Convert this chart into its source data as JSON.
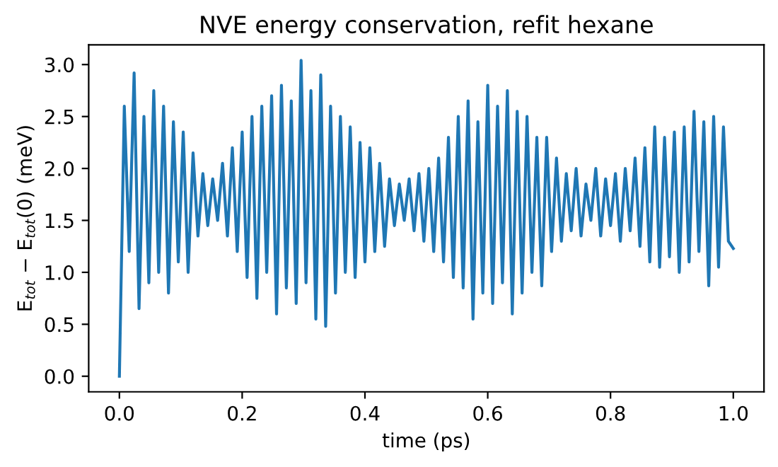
{
  "chart_data": {
    "type": "line",
    "title": "NVE energy conservation, refit hexane",
    "xlabel": "time (ps)",
    "ylabel": "E$_{tot}$ − E$_{tot}$(0) (meV)",
    "xlim": [
      -0.05,
      1.05
    ],
    "ylim": [
      -0.15,
      3.19
    ],
    "xticks": [
      {
        "value": 0,
        "label": "0.0"
      },
      0.2,
      0.4,
      0.6,
      0.8,
      {
        "value": 1,
        "label": "1.0"
      }
    ],
    "yticks": [
      {
        "value": 0,
        "label": "0.0"
      },
      0.5,
      {
        "value": 1,
        "label": "1.0"
      },
      1.5,
      {
        "value": 2,
        "label": "2.0"
      },
      2.5,
      {
        "value": 3,
        "label": "3.0"
      }
    ],
    "grid": false,
    "legend": false,
    "series": [
      {
        "color": "#1f77b4",
        "x": [
          0,
          0.008,
          0.016,
          0.024,
          0.032,
          0.04,
          0.048,
          0.056,
          0.064,
          0.072,
          0.08,
          0.088,
          0.096,
          0.104,
          0.112,
          0.12,
          0.128,
          0.136,
          0.144,
          0.152,
          0.16,
          0.168,
          0.176,
          0.184,
          0.192,
          0.2,
          0.208,
          0.216,
          0.224,
          0.232,
          0.24,
          0.248,
          0.256,
          0.264,
          0.272,
          0.28,
          0.288,
          0.296,
          0.304,
          0.312,
          0.32,
          0.328,
          0.336,
          0.344,
          0.352,
          0.36,
          0.368,
          0.376,
          0.384,
          0.392,
          0.4,
          0.408,
          0.416,
          0.424,
          0.432,
          0.44,
          0.448,
          0.456,
          0.464,
          0.472,
          0.48,
          0.488,
          0.496,
          0.504,
          0.512,
          0.52,
          0.528,
          0.536,
          0.544,
          0.552,
          0.56,
          0.568,
          0.576,
          0.584,
          0.592,
          0.6,
          0.608,
          0.616,
          0.624,
          0.632,
          0.64,
          0.648,
          0.656,
          0.664,
          0.672,
          0.68,
          0.688,
          0.696,
          0.704,
          0.712,
          0.72,
          0.728,
          0.736,
          0.744,
          0.752,
          0.76,
          0.768,
          0.776,
          0.784,
          0.792,
          0.8,
          0.808,
          0.816,
          0.824,
          0.832,
          0.84,
          0.848,
          0.856,
          0.864,
          0.872,
          0.88,
          0.888,
          0.896,
          0.904,
          0.912,
          0.92,
          0.928,
          0.936,
          0.944,
          0.952,
          0.96,
          0.968,
          0.976,
          0.984,
          0.992,
          1.0
        ],
        "values": [
          0.0,
          2.6,
          1.2,
          2.92,
          0.65,
          2.5,
          0.9,
          2.75,
          1.0,
          2.6,
          0.8,
          2.45,
          1.1,
          2.35,
          1.0,
          2.15,
          1.35,
          1.95,
          1.45,
          1.9,
          1.5,
          2.05,
          1.35,
          2.2,
          1.2,
          2.35,
          0.95,
          2.5,
          0.75,
          2.6,
          1.0,
          2.7,
          0.6,
          2.8,
          0.85,
          2.65,
          0.7,
          3.04,
          0.9,
          2.75,
          0.55,
          2.9,
          0.48,
          2.6,
          0.8,
          2.5,
          1.0,
          2.4,
          0.95,
          2.25,
          1.1,
          2.2,
          1.2,
          2.05,
          1.25,
          1.9,
          1.45,
          1.85,
          1.5,
          1.9,
          1.4,
          1.95,
          1.3,
          2.0,
          1.2,
          2.1,
          1.1,
          2.3,
          0.95,
          2.5,
          0.85,
          2.65,
          0.55,
          2.45,
          0.8,
          2.8,
          0.7,
          2.6,
          0.9,
          2.75,
          0.6,
          2.55,
          0.8,
          2.5,
          1.0,
          2.3,
          0.87,
          2.3,
          1.2,
          2.1,
          1.3,
          1.95,
          1.4,
          2.0,
          1.35,
          1.85,
          1.5,
          2.0,
          1.35,
          1.9,
          1.45,
          1.95,
          1.3,
          2.0,
          1.4,
          2.1,
          1.25,
          2.2,
          1.1,
          2.4,
          1.05,
          2.3,
          1.15,
          2.35,
          1.0,
          2.4,
          1.1,
          2.55,
          1.2,
          2.45,
          0.87,
          2.5,
          1.05,
          2.4,
          1.3,
          1.23
        ]
      }
    ]
  }
}
